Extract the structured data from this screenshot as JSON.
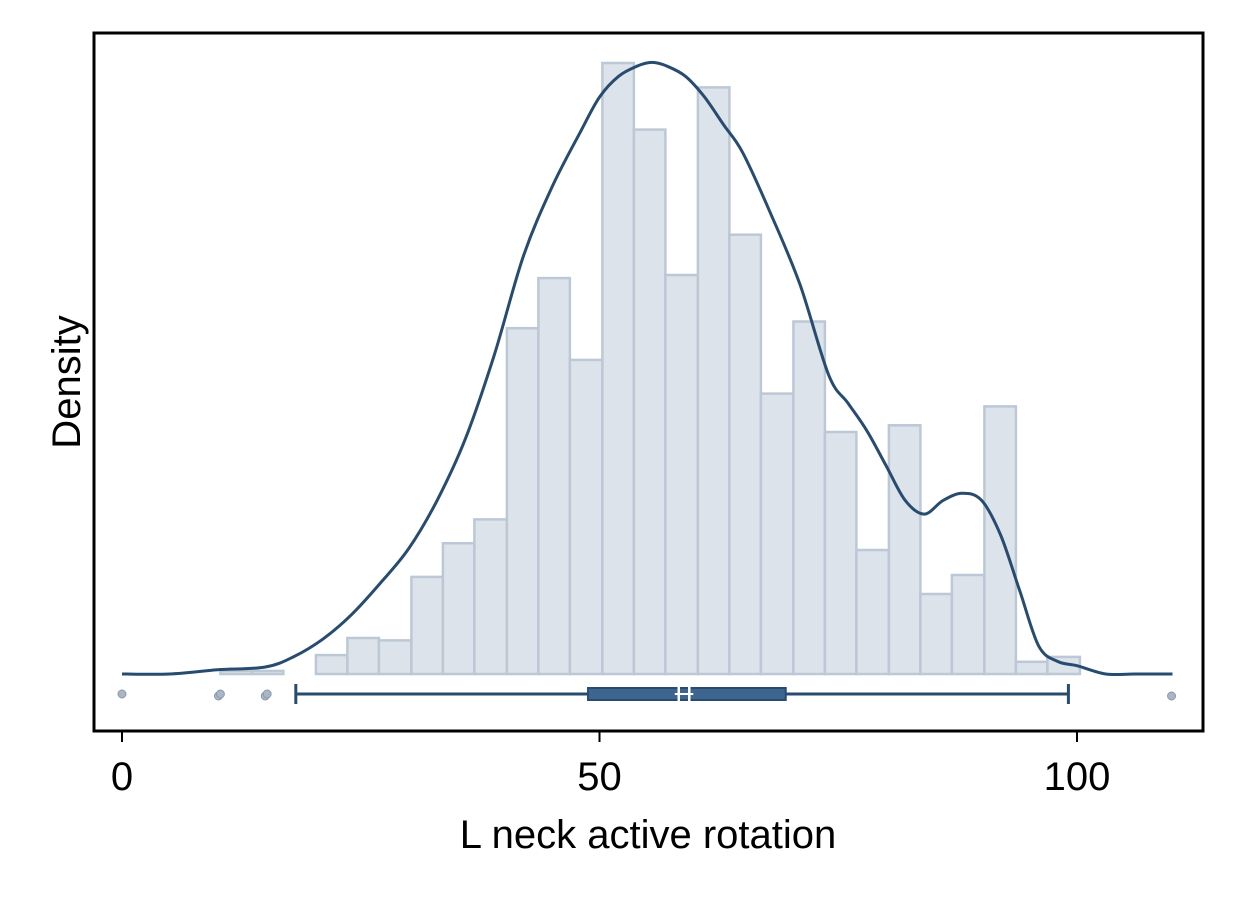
{
  "chart_data": {
    "type": "histogram",
    "xlabel": "L neck active rotation",
    "ylabel": "Density",
    "xlim": [
      0,
      110
    ],
    "x_ticks": [
      {
        "value": 0,
        "label": "0"
      },
      {
        "value": 50,
        "label": "50"
      },
      {
        "value": 100,
        "label": "100"
      }
    ],
    "y_tick_labels_shown": false,
    "grid": false,
    "legend": "none",
    "histogram": {
      "bin_width": 3.33,
      "relative_heights_note": "bar heights relative to tallest bar = 1",
      "bins": [
        {
          "start": 10.3,
          "end": 13.6,
          "height": 0.005
        },
        {
          "start": 13.6,
          "end": 16.9,
          "height": 0.005
        },
        {
          "start": 16.9,
          "end": 20.3,
          "height": 0.0
        },
        {
          "start": 20.3,
          "end": 23.6,
          "height": 0.031
        },
        {
          "start": 23.6,
          "end": 26.9,
          "height": 0.059
        },
        {
          "start": 26.9,
          "end": 30.3,
          "height": 0.055
        },
        {
          "start": 30.3,
          "end": 33.6,
          "height": 0.159
        },
        {
          "start": 33.6,
          "end": 36.9,
          "height": 0.214
        },
        {
          "start": 36.9,
          "end": 40.3,
          "height": 0.253
        },
        {
          "start": 40.3,
          "end": 43.6,
          "height": 0.566
        },
        {
          "start": 43.6,
          "end": 46.9,
          "height": 0.648
        },
        {
          "start": 46.9,
          "end": 50.3,
          "height": 0.514
        },
        {
          "start": 50.3,
          "end": 53.6,
          "height": 1.0
        },
        {
          "start": 53.6,
          "end": 56.9,
          "height": 0.891
        },
        {
          "start": 56.9,
          "end": 60.3,
          "height": 0.653
        },
        {
          "start": 60.3,
          "end": 63.6,
          "height": 0.96
        },
        {
          "start": 63.6,
          "end": 66.9,
          "height": 0.719
        },
        {
          "start": 66.9,
          "end": 70.3,
          "height": 0.459
        },
        {
          "start": 70.3,
          "end": 73.6,
          "height": 0.577
        },
        {
          "start": 73.6,
          "end": 76.9,
          "height": 0.396
        },
        {
          "start": 76.9,
          "end": 80.3,
          "height": 0.203
        },
        {
          "start": 80.3,
          "end": 83.6,
          "height": 0.407
        },
        {
          "start": 83.6,
          "end": 86.9,
          "height": 0.131
        },
        {
          "start": 86.9,
          "end": 90.3,
          "height": 0.162
        },
        {
          "start": 90.3,
          "end": 93.6,
          "height": 0.438
        },
        {
          "start": 93.6,
          "end": 96.9,
          "height": 0.02
        },
        {
          "start": 96.9,
          "end": 100.3,
          "height": 0.028
        }
      ]
    },
    "density_curve": {
      "x": [
        0,
        5,
        10,
        15,
        18,
        21,
        24,
        27,
        30,
        33,
        36,
        39,
        42,
        45,
        48,
        50,
        52,
        54,
        55.5,
        57,
        59,
        61,
        63,
        65,
        68,
        71,
        74,
        76,
        78,
        80,
        82,
        84,
        86,
        88,
        90,
        92,
        94,
        96,
        98,
        100,
        103,
        106,
        110
      ],
      "y": [
        0.0,
        0.0,
        0.006,
        0.01,
        0.025,
        0.05,
        0.085,
        0.13,
        0.18,
        0.25,
        0.34,
        0.46,
        0.6,
        0.7,
        0.78,
        0.83,
        0.86,
        0.875,
        0.88,
        0.875,
        0.86,
        0.83,
        0.79,
        0.75,
        0.66,
        0.56,
        0.43,
        0.39,
        0.35,
        0.3,
        0.25,
        0.23,
        0.25,
        0.26,
        0.25,
        0.2,
        0.12,
        0.04,
        0.018,
        0.012,
        0.0,
        0.0,
        0.0
      ]
    },
    "boxplot": {
      "whisker_low": 18.2,
      "q1": 48.8,
      "median": 58.3,
      "mean": 59.4,
      "q3": 69.5,
      "whisker_high": 99.1,
      "outliers": [
        0,
        10.1,
        10.3,
        15.0,
        15.2,
        109.9
      ]
    },
    "colors": {
      "bar_fill": "#dde3ea",
      "bar_stroke": "#bcc8d5",
      "curve": "#274c70",
      "box": "#3d6590",
      "box_stroke": "#274c70",
      "outlier": "#a8b6c5",
      "median_mark": "#ffffff"
    }
  }
}
